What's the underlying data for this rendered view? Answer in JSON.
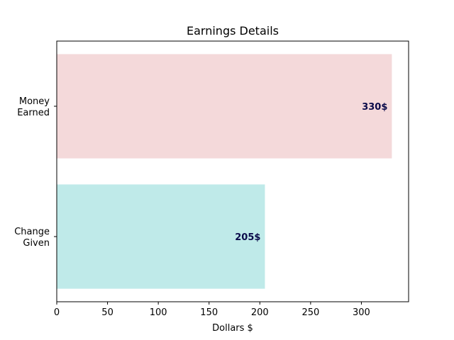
{
  "chart_data": {
    "type": "bar",
    "orientation": "horizontal",
    "title": "Earnings Details",
    "xlabel": "Dollars $",
    "ylabel": "",
    "xlim": [
      0,
      346.5
    ],
    "xticks": [
      0,
      50,
      100,
      150,
      200,
      250,
      300
    ],
    "categories": [
      [
        "Money",
        "Earned"
      ],
      [
        "Change",
        "Given"
      ]
    ],
    "values": [
      330,
      205
    ],
    "data_labels": [
      "330$",
      "205$"
    ],
    "bar_colors": [
      "#f4d9da",
      "#bfeae9"
    ],
    "label_color": "#0b0b4a",
    "grid": false,
    "legend": "none"
  }
}
